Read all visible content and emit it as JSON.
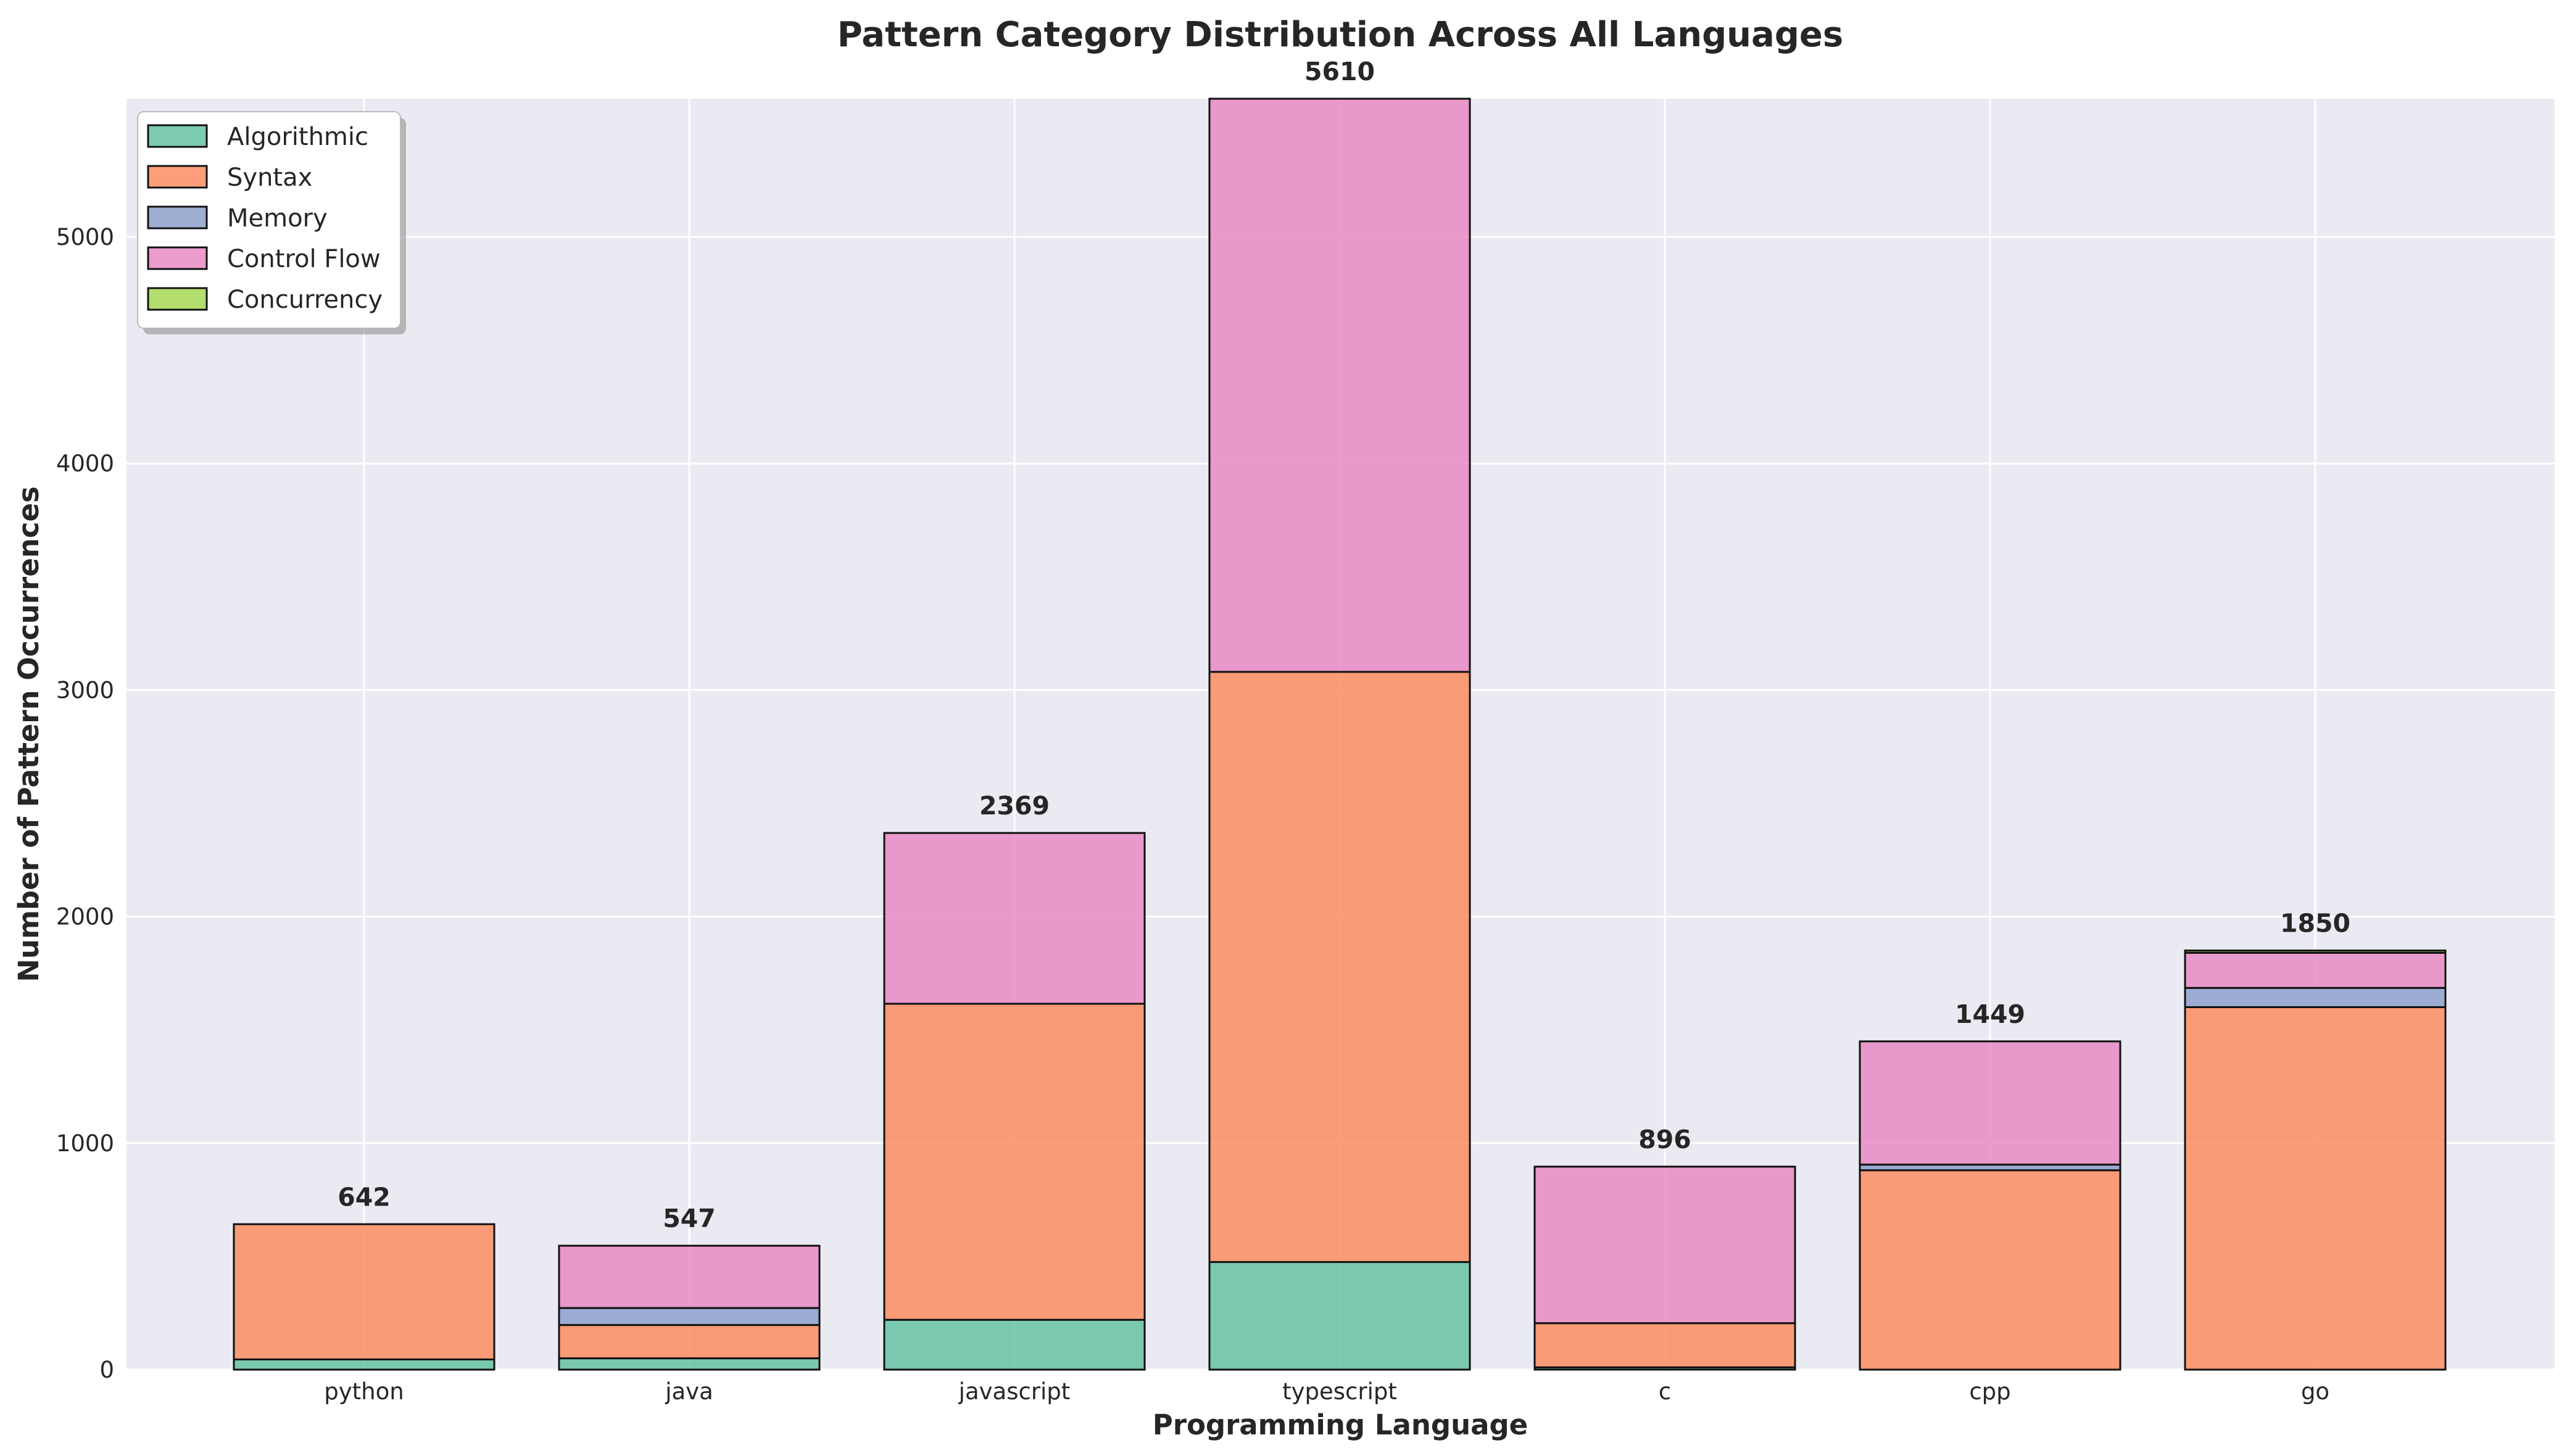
{
  "chart_data": {
    "type": "bar",
    "stacked": true,
    "title": "Pattern Category Distribution Across All Languages",
    "xlabel": "Programming Language",
    "ylabel": "Number of Pattern Occurrences",
    "categories": [
      "python",
      "java",
      "javascript",
      "typescript",
      "c",
      "cpp",
      "go"
    ],
    "ylim": [
      0,
      5610
    ],
    "yticks": [
      0,
      1000,
      2000,
      3000,
      4000,
      5000
    ],
    "grid": true,
    "legend_position": "top-left",
    "totals": [
      642,
      547,
      2369,
      5610,
      896,
      1449,
      1850
    ],
    "series": [
      {
        "name": "Algorithmic",
        "color": "#66c2a5",
        "values": [
          45,
          50,
          220,
          475,
          10,
          0,
          0
        ]
      },
      {
        "name": "Syntax",
        "color": "#fc8d62",
        "values": [
          597,
          147,
          1395,
          2605,
          195,
          880,
          1600
        ]
      },
      {
        "name": "Memory",
        "color": "#8da0cb",
        "values": [
          0,
          75,
          0,
          0,
          0,
          25,
          85
        ]
      },
      {
        "name": "Control Flow",
        "color": "#e78ac3",
        "values": [
          0,
          275,
          754,
          2530,
          691,
          544,
          155
        ]
      },
      {
        "name": "Concurrency",
        "color": "#a6d854",
        "values": [
          0,
          0,
          0,
          0,
          0,
          0,
          10
        ]
      }
    ]
  }
}
